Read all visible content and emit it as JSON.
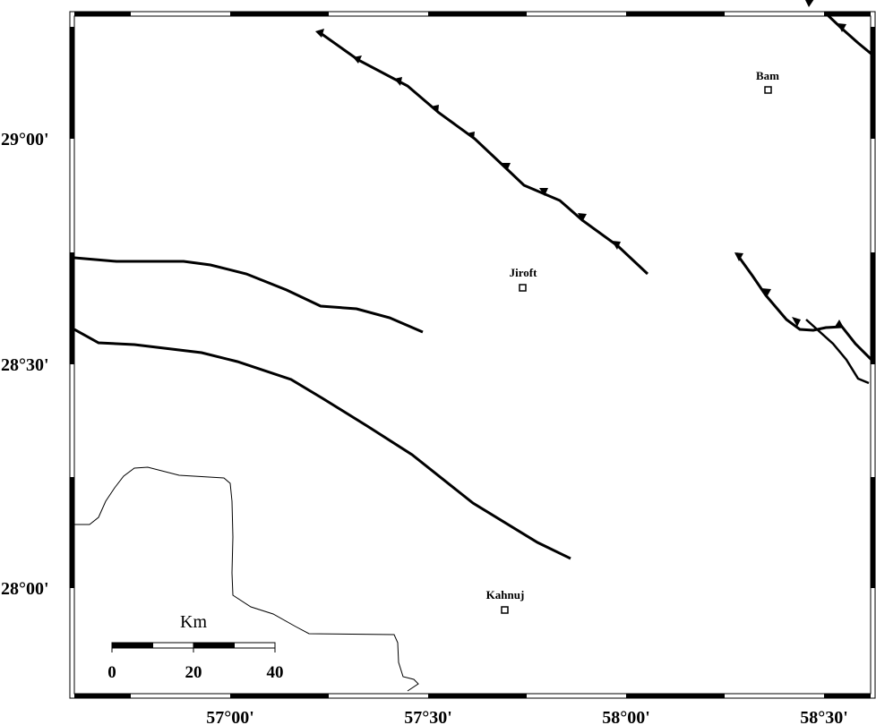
{
  "map": {
    "x_ticks": [
      "57°00'",
      "57°30'",
      "58°00'",
      "58°30'"
    ],
    "y_ticks": [
      "29°00'",
      "28°30'",
      "28°00'"
    ],
    "cities": [
      {
        "name": "Bam"
      },
      {
        "name": "Jiroft"
      },
      {
        "name": "Kahnuj"
      }
    ],
    "scale_bar": {
      "title": "Km",
      "labels": [
        "0",
        "20",
        "40"
      ]
    },
    "colors": {
      "line": "#000000",
      "background": "#ffffff"
    }
  }
}
